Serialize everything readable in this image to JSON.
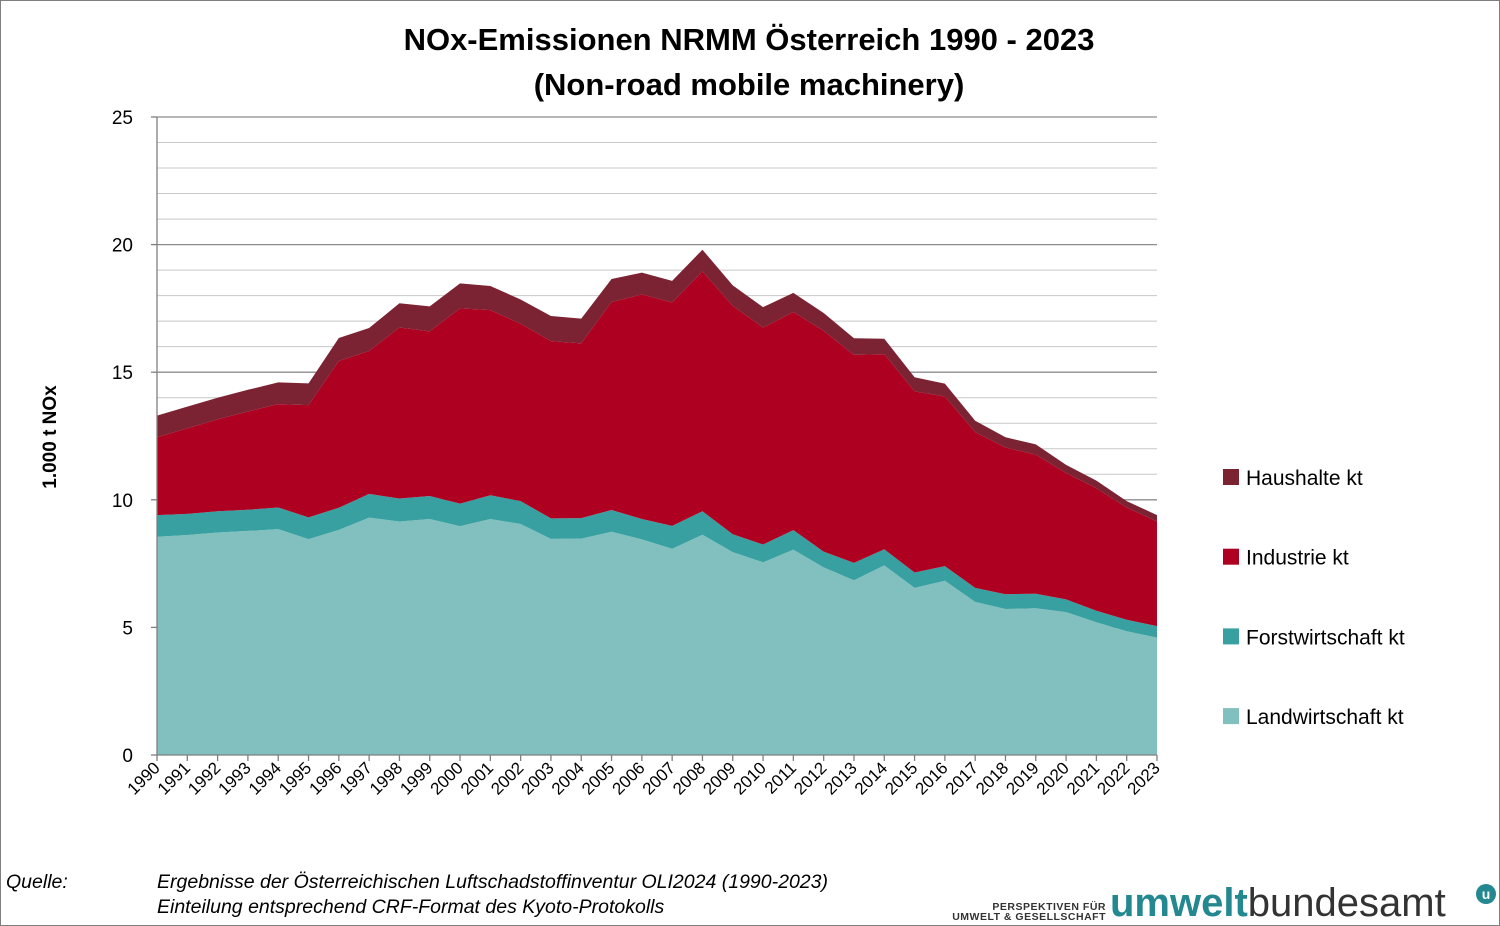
{
  "title": {
    "line1": "NOx-Emissionen NRMM Österreich 1990 - 2023",
    "line2": "(Non-road mobile machinery)"
  },
  "source": {
    "label": "Quelle:",
    "line1": "Ergebnisse der Österreichischen Luftschadstoffinventur OLI2024 (1990-2023)",
    "line2": "Einteilung entsprechend CRF-Format des Kyoto-Protokolls"
  },
  "logo": {
    "tagline1": "PERSPEKTIVEN FÜR",
    "tagline2": "UMWELT & GESELLSCHAFT",
    "word1": "umwelt",
    "word2": "bundesamt",
    "badge": "u"
  },
  "chart_data": {
    "type": "area",
    "stacked": true,
    "title": "NOx-Emissionen NRMM Österreich 1990 - 2023 (Non-road mobile machinery)",
    "xlabel": "",
    "ylabel": "1.000 t NOx",
    "ylim": [
      0,
      25
    ],
    "yticks": [
      0,
      5,
      10,
      15,
      20,
      25
    ],
    "grid": "horizontal major and minor",
    "legend_position": "right",
    "categories": [
      "1990",
      "1991",
      "1992",
      "1993",
      "1994",
      "1995",
      "1996",
      "1997",
      "1998",
      "1999",
      "2000",
      "2001",
      "2002",
      "2003",
      "2004",
      "2005",
      "2006",
      "2007",
      "2008",
      "2009",
      "2010",
      "2011",
      "2012",
      "2013",
      "2014",
      "2015",
      "2016",
      "2017",
      "2018",
      "2019",
      "2020",
      "2021",
      "2022",
      "2023"
    ],
    "series": [
      {
        "name": "Landwirtschaft kt",
        "color": "#82bfbf",
        "values": [
          8.55,
          8.62,
          8.72,
          8.78,
          8.85,
          8.46,
          8.82,
          9.3,
          9.15,
          9.25,
          8.97,
          9.25,
          9.05,
          8.47,
          8.48,
          8.75,
          8.45,
          8.08,
          8.63,
          7.95,
          7.55,
          8.05,
          7.35,
          6.85,
          7.43,
          6.55,
          6.83,
          6.0,
          5.72,
          5.75,
          5.6,
          5.2,
          4.85,
          4.6
        ]
      },
      {
        "name": "Forstwirtschaft kt",
        "color": "#38a0a0",
        "values": [
          0.85,
          0.83,
          0.83,
          0.83,
          0.85,
          0.85,
          0.87,
          0.93,
          0.9,
          0.9,
          0.88,
          0.93,
          0.9,
          0.8,
          0.8,
          0.85,
          0.8,
          0.9,
          0.92,
          0.7,
          0.7,
          0.76,
          0.62,
          0.68,
          0.63,
          0.6,
          0.57,
          0.55,
          0.58,
          0.57,
          0.5,
          0.45,
          0.45,
          0.45
        ]
      },
      {
        "name": "Industrie kt",
        "color": "#ae0020",
        "values": [
          3.05,
          3.35,
          3.6,
          3.85,
          4.05,
          4.4,
          5.75,
          5.6,
          6.7,
          6.45,
          7.65,
          7.25,
          6.95,
          6.95,
          6.85,
          8.15,
          8.8,
          8.75,
          9.4,
          8.95,
          8.5,
          8.55,
          8.65,
          8.15,
          7.65,
          7.1,
          6.65,
          6.1,
          5.75,
          5.45,
          4.95,
          4.8,
          4.4,
          4.1
        ]
      },
      {
        "name": "Haushalte kt",
        "color": "#7c2333",
        "values": [
          0.85,
          0.85,
          0.85,
          0.85,
          0.85,
          0.85,
          0.9,
          0.9,
          0.95,
          0.98,
          0.98,
          0.95,
          0.95,
          0.98,
          0.97,
          0.9,
          0.85,
          0.85,
          0.85,
          0.8,
          0.8,
          0.75,
          0.7,
          0.65,
          0.6,
          0.55,
          0.5,
          0.45,
          0.4,
          0.4,
          0.32,
          0.3,
          0.25,
          0.25
        ]
      }
    ]
  }
}
